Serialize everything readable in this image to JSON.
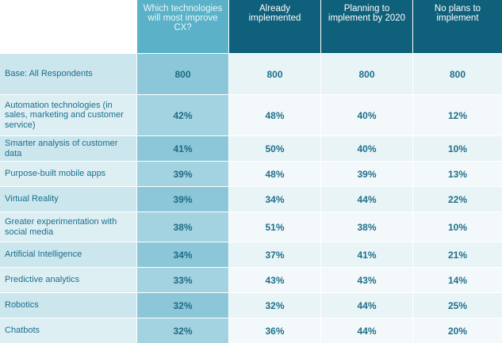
{
  "chart_data": {
    "type": "table",
    "columns": [
      "",
      "Which technologies will most improve CX?",
      "Already implemented",
      "Planning to implement by 2020",
      "No plans to implement"
    ],
    "rows": [
      {
        "label": "Base: All Respondents",
        "values": [
          "800",
          "800",
          "800",
          "800"
        ]
      },
      {
        "label": "Automation technologies (in sales, marketing and customer service)",
        "values": [
          "42%",
          "48%",
          "40%",
          "12%"
        ]
      },
      {
        "label": "Smarter analysis of customer data",
        "values": [
          "41%",
          "50%",
          "40%",
          "10%"
        ]
      },
      {
        "label": "Purpose-built mobile apps",
        "values": [
          "39%",
          "48%",
          "39%",
          "13%"
        ]
      },
      {
        "label": "Virtual Reality",
        "values": [
          "39%",
          "34%",
          "44%",
          "22%"
        ]
      },
      {
        "label": "Greater experimentation with social media",
        "values": [
          "38%",
          "51%",
          "38%",
          "10%"
        ]
      },
      {
        "label": "Artificial Intelligence",
        "values": [
          "34%",
          "37%",
          "41%",
          "21%"
        ]
      },
      {
        "label": "Predictive analytics",
        "values": [
          "33%",
          "43%",
          "43%",
          "14%"
        ]
      },
      {
        "label": "Robotics",
        "values": [
          "32%",
          "32%",
          "44%",
          "25%"
        ]
      },
      {
        "label": "Chatbots",
        "values": [
          "32%",
          "36%",
          "44%",
          "20%"
        ]
      }
    ],
    "colors": {
      "header_dark": "#0f607a",
      "header_light": "#5bb2c8",
      "first_value_column": "#8cc8d9",
      "label_column": "#cde6ee",
      "text": "#1e6f8a"
    }
  }
}
